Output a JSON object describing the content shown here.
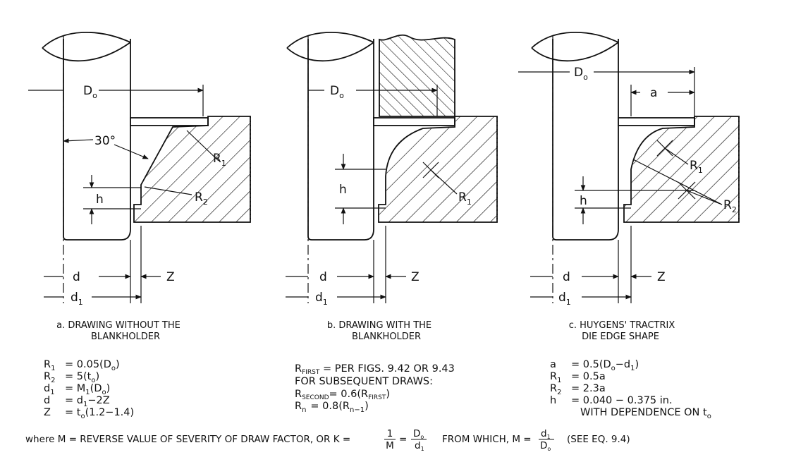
{
  "panels": [
    {
      "labels": {
        "D": "D",
        "D_sub": "o",
        "angle": "30°",
        "R1": "R",
        "R1_sub": "1",
        "R2": "R",
        "R2_sub": "2",
        "h": "h",
        "d": "d",
        "d1": "d",
        "d1_sub": "1",
        "Z": "Z"
      },
      "caption": [
        "a. DRAWING WITHOUT THE",
        "BLANKHOLDER"
      ],
      "equations": [
        {
          "l": "R",
          "ls": "1",
          "r": "= 0.05(D",
          "rs": "o",
          "re": ")"
        },
        {
          "l": "R",
          "ls": "2",
          "r": "= 5(t",
          "rs": "o",
          "re": ")"
        },
        {
          "l": "d",
          "ls": "1",
          "r": "= M",
          "rs": "1",
          "re": "(D",
          "rs2": "o",
          "re2": ")"
        },
        {
          "l": "d",
          "ls": "",
          "r": "= d",
          "rs": "1",
          "re": "−2Z"
        },
        {
          "l": "Z",
          "ls": "",
          "r": "= t",
          "rs": "o",
          "re": "(1.2−1.4)"
        }
      ]
    },
    {
      "labels": {
        "D": "D",
        "D_sub": "o",
        "R1": "R",
        "R1_sub": "1",
        "h": "h",
        "d": "d",
        "d1": "d",
        "d1_sub": "1",
        "Z": "Z"
      },
      "caption": [
        "b. DRAWING WITH THE",
        "BLANKHOLDER"
      ],
      "lines": [
        {
          "a": "R",
          "as": "FIRST",
          "b": " = PER FIGS. 9.42 OR 9.43"
        },
        {
          "a": "FOR SUBSEQUENT DRAWS:",
          "as": "",
          "b": ""
        },
        {
          "a": "R",
          "as": "SECOND",
          "b": "= 0.6(R",
          "bs": "FIRST",
          "be": ")"
        },
        {
          "a": "R",
          "as": "n",
          "b": "= 0.8(R",
          "bs": "n−1",
          "be": ")"
        }
      ]
    },
    {
      "labels": {
        "D": "D",
        "D_sub": "o",
        "a": "a",
        "R1": "R",
        "R1_sub": "1",
        "R2": "R",
        "R2_sub": "2",
        "h": "h",
        "d": "d",
        "d1": "d",
        "d1_sub": "1",
        "Z": "Z"
      },
      "caption": [
        "c. HUYGENS' TRACTRIX",
        "DIE EDGE SHAPE"
      ],
      "equations": [
        {
          "l": "a",
          "ls": "",
          "r": "= 0.5(D",
          "rs": "o",
          "re": "−d",
          "rs2": "1",
          "re2": ")"
        },
        {
          "l": "R",
          "ls": "1",
          "r": "= 0.5a",
          "rs": "",
          "re": ""
        },
        {
          "l": "R",
          "ls": "2",
          "r": "= 2.3a",
          "rs": "",
          "re": ""
        },
        {
          "l": "h",
          "ls": "",
          "r": "= 0.040 − 0.375 in.",
          "rs": "",
          "re": ""
        }
      ],
      "extra": [
        "WITH DEPENDENCE ON t",
        "o"
      ]
    }
  ],
  "footer": {
    "part1": "where M = REVERSE VALUE OF SEVERITY OF DRAW FACTOR, OR K =",
    "frac1_num": "1",
    "frac1_den": "M",
    "eq": "=",
    "frac2_num": "D",
    "frac2_num_sub": "o",
    "frac2_den": "d",
    "frac2_den_sub": "1",
    "part2": "FROM WHICH,   M =",
    "frac3_num": "d",
    "frac3_num_sub": "1",
    "frac3_den": "D",
    "frac3_den_sub": "o",
    "part3": "(SEE EQ. 9.4)"
  },
  "colors": {
    "ink": "#111111",
    "paper": "#ffffff"
  }
}
